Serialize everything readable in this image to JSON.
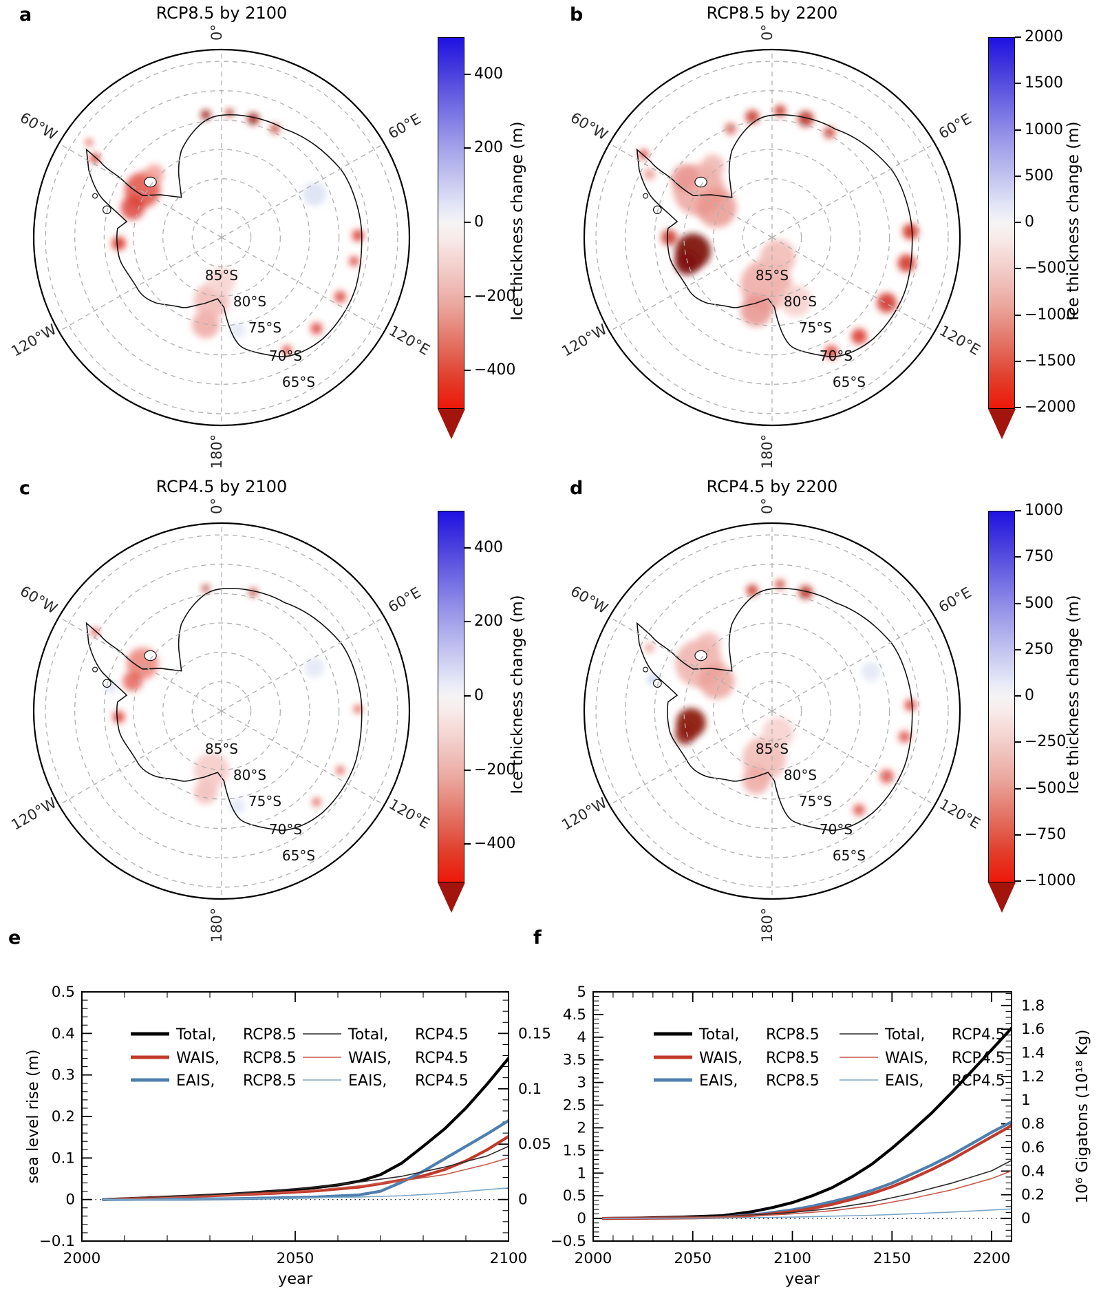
{
  "panels": {
    "a": {
      "letter": "a",
      "title": "RCP8.5 by 2100",
      "colorbar": {
        "range": [
          -500,
          500
        ],
        "ticks": [
          400,
          200,
          0,
          -200,
          -400
        ],
        "label": "Ice thickness change (m)"
      }
    },
    "b": {
      "letter": "b",
      "title": "RCP8.5 by 2200",
      "colorbar": {
        "range": [
          -2000,
          2000
        ],
        "ticks": [
          2000,
          1500,
          1000,
          500,
          0,
          -500,
          -1000,
          -1500,
          -2000
        ],
        "label": "Ice thickness change (m)"
      }
    },
    "c": {
      "letter": "c",
      "title": "RCP4.5 by 2100",
      "colorbar": {
        "range": [
          -500,
          500
        ],
        "ticks": [
          400,
          200,
          0,
          -200,
          -400
        ],
        "label": "Ice thickness change (m)"
      }
    },
    "d": {
      "letter": "d",
      "title": "RCP4.5 by 2200",
      "colorbar": {
        "range": [
          -1000,
          1000
        ],
        "ticks": [
          1000,
          750,
          500,
          250,
          0,
          -250,
          -500,
          -750,
          -1000
        ],
        "label": "Ice thickness change (m)"
      }
    }
  },
  "map_labels": {
    "meridians": [
      "0°",
      "60°E",
      "120°E",
      "180°",
      "120°W",
      "60°W"
    ],
    "latitudes": [
      "85°S",
      "80°S",
      "75°S",
      "70°S",
      "65°S"
    ]
  },
  "chart_letters": {
    "e": "e",
    "f": "f"
  },
  "colors": {
    "total_rcp85": "#000000",
    "wais_rcp85": "#c23a2b",
    "eais_rcp85": "#4e7fae",
    "total_rcp45": "#2b2b2b",
    "wais_rcp45": "#c75948",
    "eais_rcp45": "#7ba7c8",
    "colorbar_arrow": "#a3140c"
  },
  "chart_data": [
    {
      "id": "e",
      "type": "line",
      "title": "",
      "xlabel": "year",
      "ylabel": "sea level rise (m)",
      "ylabel_right": "",
      "xlim": [
        2000,
        2100
      ],
      "ylim": [
        -0.1,
        0.5
      ],
      "grid": false,
      "zero_line": true,
      "xticks": {
        "major": [
          2000,
          2050,
          2100
        ],
        "labels": [
          "2000",
          "2050",
          "2100"
        ],
        "minor_step": 10
      },
      "yticks": {
        "major_step": 0.1,
        "minor_step": 0.02,
        "labels": [
          "−0.1",
          "0",
          "0.1",
          "0.2",
          "0.3",
          "0.4",
          "0.5"
        ]
      },
      "right_axis": {
        "scale": 0.375,
        "major_step": 0.05,
        "minor_step": 0.01,
        "tick_values": [
          0,
          0.05,
          0.1,
          0.15
        ],
        "tick_labels": [
          "0",
          "0.05",
          "0.1",
          "0.15"
        ],
        "label": ""
      },
      "legend": [
        {
          "name": "Total,",
          "scenario": "RCP8.5",
          "color": "#000000",
          "width": 5
        },
        {
          "name": "WAIS,",
          "scenario": "RCP8.5",
          "color": "#c23a2b",
          "width": 5
        },
        {
          "name": "EAIS,",
          "scenario": "RCP8.5",
          "color": "#4e7fae",
          "width": 5
        },
        {
          "name": "Total,",
          "scenario": "RCP4.5",
          "color": "#2b2b2b",
          "width": 1.6
        },
        {
          "name": "WAIS,",
          "scenario": "RCP4.5",
          "color": "#c75948",
          "width": 1.6
        },
        {
          "name": "EAIS,",
          "scenario": "RCP4.5",
          "color": "#7ba7c8",
          "width": 1.6
        }
      ],
      "series": [
        {
          "name": "Total RCP8.5",
          "color": "#000000",
          "width": 4.2,
          "points": [
            [
              2005,
              0
            ],
            [
              2015,
              0.004
            ],
            [
              2025,
              0.008
            ],
            [
              2035,
              0.013
            ],
            [
              2045,
              0.02
            ],
            [
              2050,
              0.024
            ],
            [
              2055,
              0.029
            ],
            [
              2060,
              0.035
            ],
            [
              2065,
              0.044
            ],
            [
              2070,
              0.06
            ],
            [
              2075,
              0.088
            ],
            [
              2080,
              0.128
            ],
            [
              2085,
              0.17
            ],
            [
              2090,
              0.22
            ],
            [
              2095,
              0.278
            ],
            [
              2100,
              0.34
            ]
          ]
        },
        {
          "name": "WAIS RCP8.5",
          "color": "#c23a2b",
          "width": 4.2,
          "points": [
            [
              2005,
              0
            ],
            [
              2015,
              0.003
            ],
            [
              2025,
              0.007
            ],
            [
              2035,
              0.011
            ],
            [
              2045,
              0.015
            ],
            [
              2055,
              0.021
            ],
            [
              2065,
              0.03
            ],
            [
              2070,
              0.038
            ],
            [
              2075,
              0.047
            ],
            [
              2080,
              0.057
            ],
            [
              2085,
              0.072
            ],
            [
              2090,
              0.093
            ],
            [
              2095,
              0.12
            ],
            [
              2100,
              0.152
            ]
          ]
        },
        {
          "name": "EAIS RCP8.5",
          "color": "#4e7fae",
          "width": 4.2,
          "points": [
            [
              2005,
              0
            ],
            [
              2015,
              0.001
            ],
            [
              2025,
              0.001
            ],
            [
              2035,
              0.002
            ],
            [
              2045,
              0.004
            ],
            [
              2055,
              0.006
            ],
            [
              2065,
              0.011
            ],
            [
              2070,
              0.02
            ],
            [
              2075,
              0.042
            ],
            [
              2080,
              0.068
            ],
            [
              2085,
              0.098
            ],
            [
              2090,
              0.128
            ],
            [
              2095,
              0.158
            ],
            [
              2100,
              0.19
            ]
          ]
        },
        {
          "name": "Total RCP4.5",
          "color": "#2b2b2b",
          "width": 1.6,
          "points": [
            [
              2005,
              0
            ],
            [
              2015,
              0.004
            ],
            [
              2025,
              0.009
            ],
            [
              2035,
              0.014
            ],
            [
              2045,
              0.021
            ],
            [
              2055,
              0.03
            ],
            [
              2065,
              0.042
            ],
            [
              2075,
              0.056
            ],
            [
              2085,
              0.078
            ],
            [
              2095,
              0.105
            ],
            [
              2100,
              0.128
            ]
          ]
        },
        {
          "name": "WAIS RCP4.5",
          "color": "#c75948",
          "width": 1.6,
          "points": [
            [
              2005,
              0
            ],
            [
              2015,
              0.003
            ],
            [
              2025,
              0.007
            ],
            [
              2035,
              0.011
            ],
            [
              2045,
              0.016
            ],
            [
              2055,
              0.023
            ],
            [
              2065,
              0.033
            ],
            [
              2075,
              0.045
            ],
            [
              2085,
              0.06
            ],
            [
              2095,
              0.085
            ],
            [
              2100,
              0.1
            ]
          ]
        },
        {
          "name": "EAIS RCP4.5",
          "color": "#7ba7c8",
          "width": 1.6,
          "points": [
            [
              2005,
              0
            ],
            [
              2025,
              0.001
            ],
            [
              2045,
              0.003
            ],
            [
              2065,
              0.006
            ],
            [
              2075,
              0.009
            ],
            [
              2085,
              0.015
            ],
            [
              2095,
              0.024
            ],
            [
              2100,
              0.028
            ]
          ]
        }
      ]
    },
    {
      "id": "f",
      "type": "line",
      "title": "",
      "xlabel": "year",
      "ylabel": "",
      "ylabel_right": "10⁶ Gigatons (10¹⁸ Kg)",
      "xlim": [
        2000,
        2210
      ],
      "ylim": [
        -0.5,
        5
      ],
      "grid": false,
      "zero_line": true,
      "xticks": {
        "major": [
          2000,
          2050,
          2100,
          2150,
          2200
        ],
        "labels": [
          "2000",
          "2050",
          "2100",
          "2150",
          "2200"
        ],
        "minor_step": 10
      },
      "yticks": {
        "major_step": 0.5,
        "minor_step": 0.1,
        "labels": [
          "−0.5",
          "0",
          "0.5",
          "1",
          "1.5",
          "2",
          "2.5",
          "3",
          "3.5",
          "4",
          "4.5",
          "5"
        ]
      },
      "right_axis": {
        "scale": 0.383,
        "major_step": 0.2,
        "minor_step": 0.05,
        "tick_values": [
          0,
          0.2,
          0.4,
          0.6,
          0.8,
          1,
          1.2,
          1.4,
          1.6,
          1.8
        ],
        "tick_labels": [
          "0",
          "0.2",
          "0.4",
          "0.6",
          "0.8",
          "1",
          "1.2",
          "1.4",
          "1.6",
          "1.8"
        ],
        "label": "10⁶ Gigatons (10¹⁸ Kg)"
      },
      "legend": [
        {
          "name": "Total,",
          "scenario": "RCP8.5",
          "color": "#000000",
          "width": 5
        },
        {
          "name": "WAIS,",
          "scenario": "RCP8.5",
          "color": "#c23a2b",
          "width": 5
        },
        {
          "name": "EAIS,",
          "scenario": "RCP8.5",
          "color": "#4e7fae",
          "width": 5
        },
        {
          "name": "Total,",
          "scenario": "RCP4.5",
          "color": "#2b2b2b",
          "width": 1.6
        },
        {
          "name": "WAIS,",
          "scenario": "RCP4.5",
          "color": "#c75948",
          "width": 1.6
        },
        {
          "name": "EAIS,",
          "scenario": "RCP4.5",
          "color": "#7ba7c8",
          "width": 1.6
        }
      ],
      "series": [
        {
          "name": "Total RCP8.5",
          "color": "#000000",
          "width": 4.2,
          "points": [
            [
              2005,
              0
            ],
            [
              2025,
              0.01
            ],
            [
              2045,
              0.03
            ],
            [
              2065,
              0.06
            ],
            [
              2080,
              0.15
            ],
            [
              2090,
              0.24
            ],
            [
              2100,
              0.35
            ],
            [
              2110,
              0.5
            ],
            [
              2120,
              0.68
            ],
            [
              2130,
              0.92
            ],
            [
              2140,
              1.2
            ],
            [
              2150,
              1.55
            ],
            [
              2160,
              1.93
            ],
            [
              2170,
              2.33
            ],
            [
              2180,
              2.78
            ],
            [
              2190,
              3.25
            ],
            [
              2200,
              3.72
            ],
            [
              2210,
              4.2
            ]
          ]
        },
        {
          "name": "EAIS RCP8.5",
          "color": "#4e7fae",
          "width": 4.2,
          "points": [
            [
              2005,
              0
            ],
            [
              2045,
              0.01
            ],
            [
              2065,
              0.03
            ],
            [
              2085,
              0.1
            ],
            [
              2100,
              0.19
            ],
            [
              2110,
              0.27
            ],
            [
              2120,
              0.37
            ],
            [
              2130,
              0.48
            ],
            [
              2140,
              0.62
            ],
            [
              2150,
              0.78
            ],
            [
              2160,
              0.98
            ],
            [
              2170,
              1.18
            ],
            [
              2180,
              1.4
            ],
            [
              2190,
              1.65
            ],
            [
              2200,
              1.9
            ],
            [
              2210,
              2.13
            ]
          ]
        },
        {
          "name": "WAIS RCP8.5",
          "color": "#c23a2b",
          "width": 4.2,
          "points": [
            [
              2005,
              0
            ],
            [
              2045,
              0.01
            ],
            [
              2065,
              0.025
            ],
            [
              2085,
              0.08
            ],
            [
              2100,
              0.15
            ],
            [
              2110,
              0.22
            ],
            [
              2120,
              0.31
            ],
            [
              2130,
              0.42
            ],
            [
              2140,
              0.55
            ],
            [
              2150,
              0.7
            ],
            [
              2160,
              0.88
            ],
            [
              2170,
              1.08
            ],
            [
              2180,
              1.3
            ],
            [
              2190,
              1.55
            ],
            [
              2200,
              1.8
            ],
            [
              2210,
              2.05
            ]
          ]
        },
        {
          "name": "Total RCP4.5",
          "color": "#2b2b2b",
          "width": 1.6,
          "points": [
            [
              2005,
              0
            ],
            [
              2045,
              0.02
            ],
            [
              2065,
              0.045
            ],
            [
              2085,
              0.085
            ],
            [
              2100,
              0.13
            ],
            [
              2120,
              0.22
            ],
            [
              2140,
              0.36
            ],
            [
              2160,
              0.55
            ],
            [
              2180,
              0.78
            ],
            [
              2200,
              1.05
            ],
            [
              2210,
              1.28
            ]
          ]
        },
        {
          "name": "WAIS RCP4.5",
          "color": "#c75948",
          "width": 1.6,
          "points": [
            [
              2005,
              0
            ],
            [
              2045,
              0.015
            ],
            [
              2065,
              0.035
            ],
            [
              2085,
              0.065
            ],
            [
              2100,
              0.1
            ],
            [
              2120,
              0.17
            ],
            [
              2140,
              0.28
            ],
            [
              2160,
              0.44
            ],
            [
              2180,
              0.63
            ],
            [
              2200,
              0.88
            ],
            [
              2210,
              1.05
            ]
          ]
        },
        {
          "name": "EAIS RCP4.5",
          "color": "#7ba7c8",
          "width": 1.6,
          "points": [
            [
              2005,
              0
            ],
            [
              2065,
              0.008
            ],
            [
              2100,
              0.028
            ],
            [
              2140,
              0.07
            ],
            [
              2180,
              0.14
            ],
            [
              2210,
              0.21
            ]
          ]
        }
      ]
    }
  ]
}
